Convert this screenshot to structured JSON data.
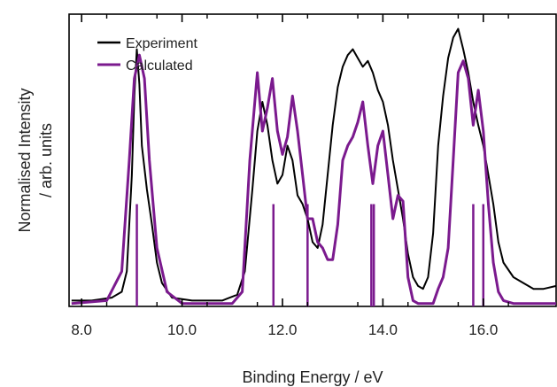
{
  "chart_data": {
    "type": "line",
    "title": "",
    "xlabel": "Binding Energy / eV",
    "ylabel_lines": [
      "Normalised Intensity",
      "/ arb. units"
    ],
    "xlim": [
      7.75,
      17.45
    ],
    "ylim": [
      0,
      1.0
    ],
    "x_ticks": [
      8.0,
      10.0,
      12.0,
      14.0,
      16.0
    ],
    "x_tick_labels": [
      "8.0",
      "10.0",
      "12.0",
      "14.0",
      "16.0"
    ],
    "y_ticks_shown": false,
    "grid": false,
    "legend": {
      "position": "top-left",
      "entries": [
        {
          "label": "Experiment",
          "color": "#000000"
        },
        {
          "label": "Calculated",
          "color": "#7b1a8e"
        }
      ]
    },
    "series": [
      {
        "name": "Experiment",
        "color": "#000000",
        "x": [
          7.8,
          8.2,
          8.6,
          8.8,
          8.9,
          9.0,
          9.05,
          9.1,
          9.15,
          9.2,
          9.3,
          9.4,
          9.5,
          9.6,
          9.8,
          10.2,
          10.8,
          11.1,
          11.25,
          11.4,
          11.5,
          11.6,
          11.7,
          11.8,
          11.9,
          12.0,
          12.1,
          12.2,
          12.3,
          12.4,
          12.5,
          12.6,
          12.7,
          12.8,
          12.9,
          13.0,
          13.1,
          13.2,
          13.3,
          13.4,
          13.5,
          13.6,
          13.7,
          13.8,
          13.9,
          14.0,
          14.1,
          14.2,
          14.3,
          14.4,
          14.5,
          14.6,
          14.7,
          14.8,
          14.9,
          15.0,
          15.1,
          15.2,
          15.3,
          15.4,
          15.5,
          15.6,
          15.7,
          15.8,
          15.9,
          16.0,
          16.1,
          16.2,
          16.3,
          16.4,
          16.6,
          16.8,
          17.0,
          17.2,
          17.45
        ],
        "y": [
          0.02,
          0.02,
          0.03,
          0.05,
          0.12,
          0.45,
          0.72,
          0.88,
          0.76,
          0.55,
          0.4,
          0.28,
          0.15,
          0.08,
          0.03,
          0.02,
          0.02,
          0.04,
          0.12,
          0.4,
          0.6,
          0.7,
          0.62,
          0.5,
          0.42,
          0.45,
          0.55,
          0.5,
          0.38,
          0.35,
          0.3,
          0.22,
          0.2,
          0.28,
          0.45,
          0.62,
          0.75,
          0.82,
          0.86,
          0.88,
          0.85,
          0.82,
          0.84,
          0.8,
          0.74,
          0.7,
          0.62,
          0.5,
          0.4,
          0.3,
          0.18,
          0.1,
          0.07,
          0.06,
          0.1,
          0.25,
          0.55,
          0.72,
          0.85,
          0.92,
          0.95,
          0.88,
          0.8,
          0.7,
          0.62,
          0.55,
          0.45,
          0.35,
          0.22,
          0.15,
          0.1,
          0.08,
          0.06,
          0.06,
          0.07
        ]
      },
      {
        "name": "Calculated",
        "color": "#7b1a8e",
        "x": [
          7.8,
          8.5,
          8.8,
          8.95,
          9.05,
          9.15,
          9.25,
          9.35,
          9.5,
          9.7,
          10.0,
          10.5,
          11.0,
          11.2,
          11.35,
          11.5,
          11.6,
          11.7,
          11.8,
          11.9,
          12.0,
          12.1,
          12.2,
          12.3,
          12.4,
          12.5,
          12.6,
          12.7,
          12.8,
          12.9,
          13.0,
          13.1,
          13.2,
          13.3,
          13.4,
          13.5,
          13.6,
          13.7,
          13.8,
          13.9,
          14.0,
          14.1,
          14.2,
          14.3,
          14.4,
          14.5,
          14.6,
          14.7,
          14.8,
          15.0,
          15.1,
          15.2,
          15.3,
          15.4,
          15.5,
          15.6,
          15.7,
          15.8,
          15.9,
          16.0,
          16.1,
          16.2,
          16.3,
          16.4,
          16.6,
          16.8,
          17.0,
          17.45
        ],
        "y": [
          0.01,
          0.02,
          0.12,
          0.5,
          0.78,
          0.86,
          0.78,
          0.5,
          0.2,
          0.05,
          0.01,
          0.01,
          0.01,
          0.05,
          0.5,
          0.8,
          0.6,
          0.68,
          0.78,
          0.6,
          0.52,
          0.58,
          0.72,
          0.6,
          0.45,
          0.3,
          0.3,
          0.22,
          0.2,
          0.16,
          0.16,
          0.28,
          0.5,
          0.55,
          0.58,
          0.63,
          0.7,
          0.55,
          0.42,
          0.55,
          0.6,
          0.45,
          0.3,
          0.38,
          0.36,
          0.1,
          0.02,
          0.01,
          0.01,
          0.01,
          0.06,
          0.1,
          0.2,
          0.5,
          0.8,
          0.84,
          0.78,
          0.62,
          0.74,
          0.6,
          0.35,
          0.15,
          0.05,
          0.02,
          0.01,
          0.01,
          0.01,
          0.01
        ]
      }
    ],
    "stick_lines": {
      "name": "Calculated",
      "color": "#7b1a8e",
      "x": [
        9.1,
        11.82,
        12.5,
        13.77,
        13.82,
        15.8,
        16.0
      ],
      "height": 0.35
    }
  }
}
